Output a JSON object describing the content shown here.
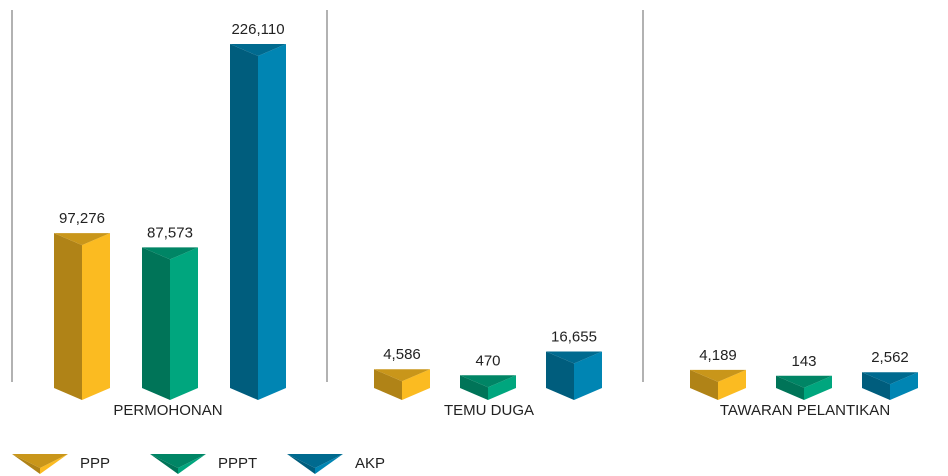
{
  "chart_data": {
    "type": "bar",
    "categories": [
      "PERMOHONAN",
      "TEMU DUGA",
      "TAWARAN PELANTIKAN"
    ],
    "series": [
      {
        "name": "PPP",
        "color": "#fbbb21",
        "values": [
          97276,
          4586,
          4189
        ],
        "value_labels": [
          "97,276",
          "4,586",
          "4,189"
        ]
      },
      {
        "name": "PPPT",
        "color": "#00a67e",
        "values": [
          87573,
          470,
          143
        ],
        "value_labels": [
          "87,573",
          "470",
          "143"
        ]
      },
      {
        "name": "AKP",
        "color": "#0085b3",
        "values": [
          226110,
          16655,
          2562
        ],
        "value_labels": [
          "226,110",
          "16,655",
          "2,562"
        ]
      }
    ]
  }
}
